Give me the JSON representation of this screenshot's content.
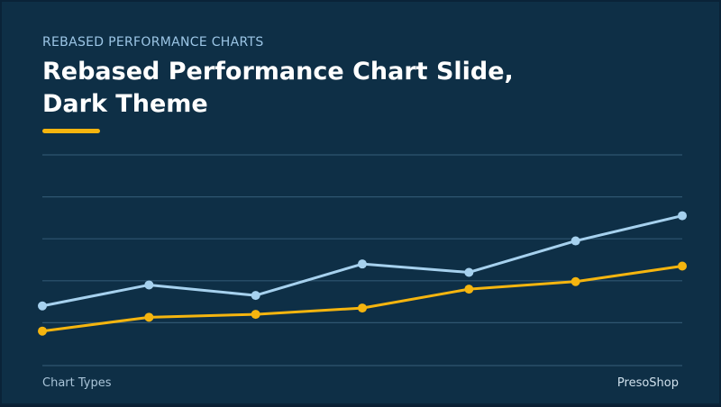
{
  "slide": {
    "eyebrow": "REBASED PERFORMANCE CHARTS",
    "title": "Rebased Performance Chart Slide,\nDark Theme",
    "footer_left": "Chart Types",
    "footer_right": "PresoShop",
    "colors": {
      "background": "#0e2f46",
      "accent": "#f5b50f",
      "gridline": "#2f5671",
      "text_light": "#9cc6e6"
    }
  },
  "chart_data": {
    "type": "line",
    "title": "",
    "xlabel": "",
    "ylabel": "",
    "x": [
      1,
      2,
      3,
      4,
      5,
      6,
      7
    ],
    "ylim": [
      0,
      5
    ],
    "grid": true,
    "legend": "none",
    "series": [
      {
        "color": "#a6d1ee",
        "values": [
          1.4,
          1.9,
          1.65,
          2.4,
          2.2,
          2.95,
          3.55
        ]
      },
      {
        "color": "#f5b50f",
        "values": [
          0.8,
          1.13,
          1.2,
          1.35,
          1.8,
          1.98,
          2.35
        ]
      }
    ]
  }
}
